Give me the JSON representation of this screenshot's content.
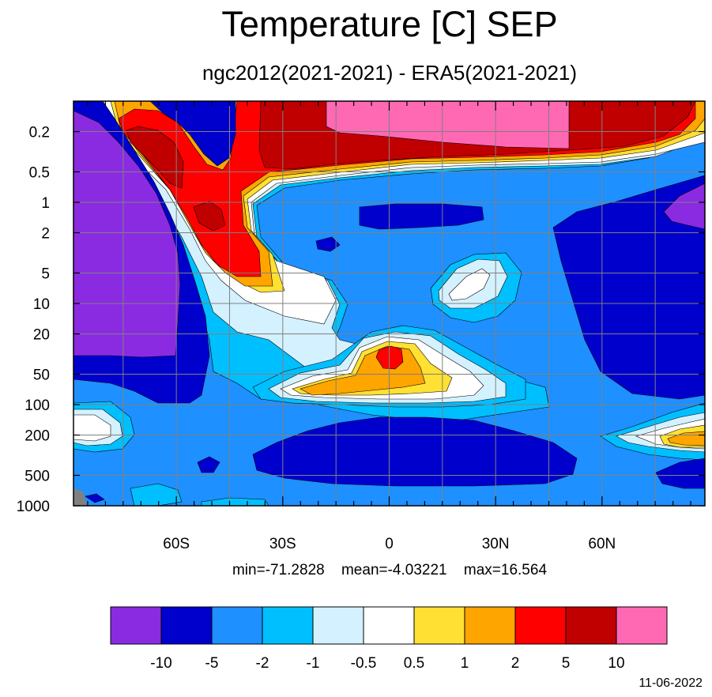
{
  "chart_data": {
    "type": "heatmap",
    "title": "Temperature [C] SEP",
    "subtitle": "ngc2012(2021-2021) - ERA5(2021-2021)",
    "x_ticks": [
      "60S",
      "30S",
      "0",
      "30N",
      "60N"
    ],
    "x_tick_values": [
      -60,
      -30,
      0,
      30,
      60
    ],
    "xlim": [
      -89,
      89
    ],
    "y_ticks": [
      "0.2",
      "0.5",
      "1",
      "2",
      "5",
      "10",
      "20",
      "50",
      "100",
      "200",
      "500",
      "1000"
    ],
    "y_tick_values": [
      0.2,
      0.5,
      1,
      2,
      5,
      10,
      20,
      50,
      100,
      200,
      500,
      1000
    ],
    "ylim": [
      1000,
      0.1
    ],
    "y_scale": "log",
    "grid": true,
    "stats": {
      "min": "min=-71.2828",
      "mean": "mean=-4.03221",
      "max": "max=16.564"
    },
    "colorbar": {
      "labels": [
        "-10",
        "-5",
        "-2",
        "-1",
        "-0.5",
        "0.5",
        "1",
        "2",
        "5",
        "10"
      ],
      "colors": [
        "#8a2be2",
        "#0000cd",
        "#1e90ff",
        "#00bfff",
        "#d4f1ff",
        "#ffffff",
        "#ffe033",
        "#ffa500",
        "#ff0000",
        "#c00000",
        "#ff69b4"
      ]
    },
    "missing_color": "#808080"
  },
  "date": "11-06-2022"
}
